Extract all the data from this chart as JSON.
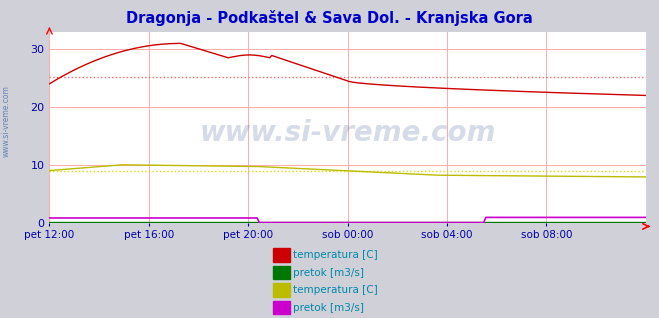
{
  "title": "Dragonja - Podkaštel & Sava Dol. - Kranjska Gora",
  "title_color": "#0000cc",
  "bg_color": "#d0d0d8",
  "plot_bg_color": "#ffffff",
  "watermark": "www.si-vreme.com",
  "xlabel_ticks": [
    "pet 12:00",
    "pet 16:00",
    "pet 20:00",
    "sob 00:00",
    "sob 04:00",
    "sob 08:00"
  ],
  "ylim": [
    0,
    33
  ],
  "yticks": [
    0,
    10,
    20,
    30
  ],
  "grid_color": "#ffaaaa",
  "n_points": 288,
  "dragonja_temp_color": "#cc0000",
  "dragonja_pretok_color": "#007700",
  "sava_temp_color": "#bbbb00",
  "sava_pretok_color": "#cc00cc",
  "avg_dragonja_color": "#ff6666",
  "avg_dragonja_value": 25.2,
  "avg_sava_color": "#dddd00",
  "avg_sava_value": 9.0,
  "legend_items": [
    {
      "label": "temperatura [C]",
      "color": "#cc0000"
    },
    {
      "label": "pretok [m3/s]",
      "color": "#007700"
    },
    {
      "label": "temperatura [C]",
      "color": "#bbbb00"
    },
    {
      "label": "pretok [m3/s]",
      "color": "#cc00cc"
    }
  ],
  "tick_color": "#0000aa",
  "watermark_color": "#1a3a7a",
  "watermark_alpha": 0.18,
  "side_label": "www.si-vreme.com",
  "side_label_color": "#4466aa"
}
